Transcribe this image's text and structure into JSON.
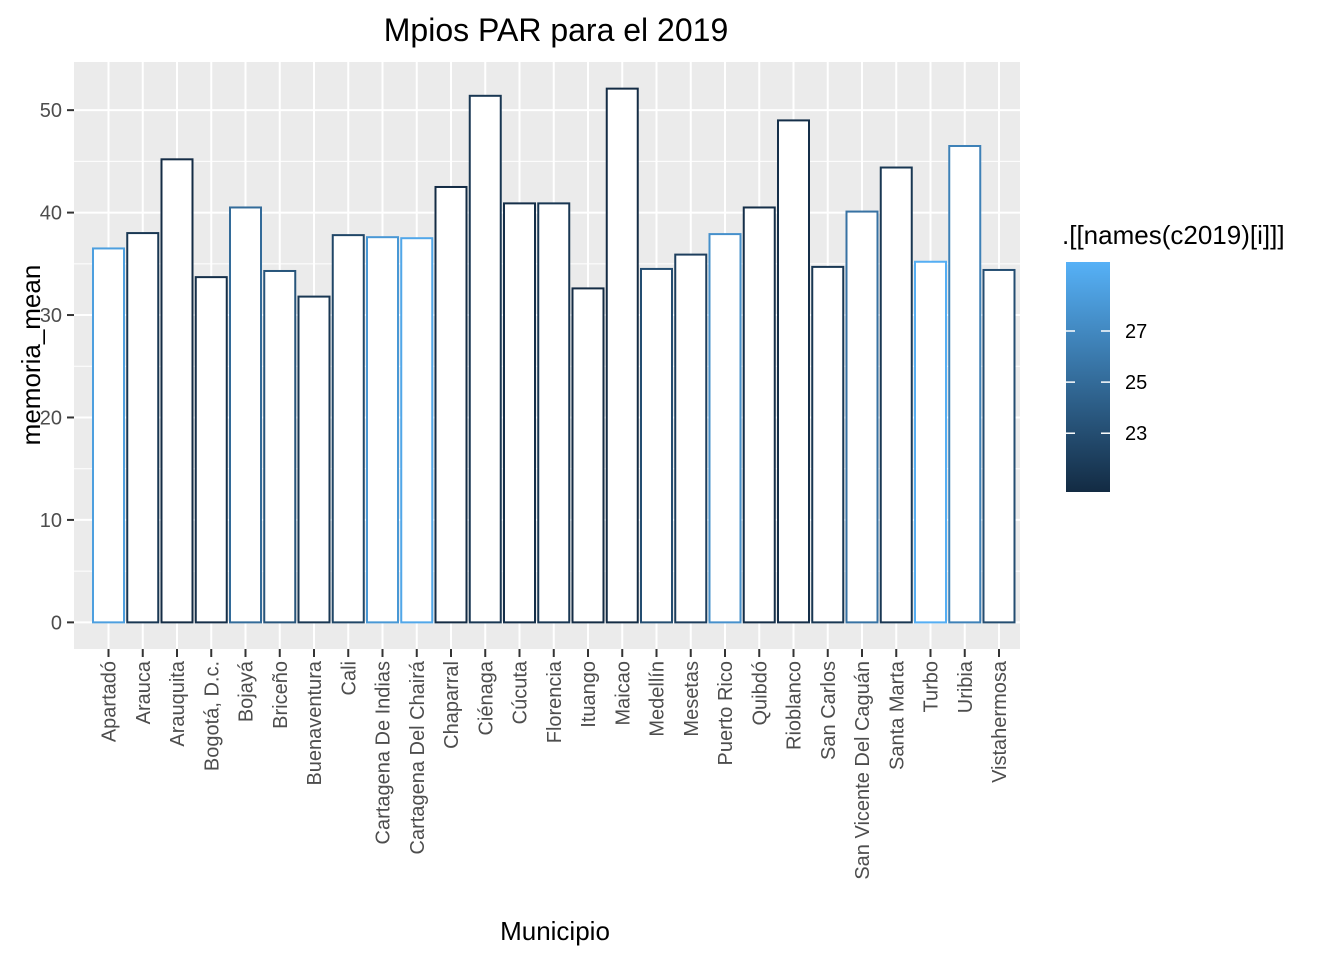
{
  "chart_data": {
    "type": "bar",
    "title": "Mpios PAR para el 2019",
    "xlabel": "Municipio",
    "ylabel": "memoria_mean",
    "ylim": [
      -2.6,
      54.7
    ],
    "yticks": [
      0,
      10,
      20,
      30,
      40,
      50
    ],
    "grid": true,
    "categories": [
      "Apartadó",
      "Arauca",
      "Arauquita",
      "Bogotá, D.c.",
      "Bojayá",
      "Briceño",
      "Buenaventura",
      "Cali",
      "Cartagena De Indias",
      "Cartagena Del Chairá",
      "Chaparral",
      "Ciénaga",
      "Cúcuta",
      "Florencia",
      "Ituango",
      "Maicao",
      "Medellín",
      "Mesetas",
      "Puerto Rico",
      "Quibdó",
      "Rioblanco",
      "San Carlos",
      "San Vicente Del Caguán",
      "Santa Marta",
      "Turbo",
      "Uribia",
      "Vistahermosa"
    ],
    "values": [
      36.5,
      38.0,
      45.2,
      33.7,
      40.5,
      34.3,
      31.8,
      37.8,
      37.6,
      37.5,
      42.5,
      51.4,
      40.9,
      40.9,
      32.6,
      52.1,
      34.5,
      35.9,
      37.9,
      40.5,
      49.0,
      34.7,
      40.1,
      44.4,
      35.2,
      46.5,
      34.4
    ],
    "color_values": [
      28.5,
      21.5,
      20.8,
      21.0,
      25.0,
      23.5,
      21.5,
      22.5,
      28.0,
      29.0,
      20.8,
      21.5,
      21.0,
      21.5,
      20.8,
      20.8,
      23.0,
      22.0,
      27.5,
      21.0,
      21.0,
      21.5,
      25.5,
      21.5,
      29.5,
      26.5,
      23.0
    ],
    "legend": {
      "title": ".[[names(c2019)[i]]]",
      "placement": "right",
      "range": [
        20.7,
        29.7
      ],
      "ticks": [
        23,
        25,
        27
      ],
      "color_low": "#132B43",
      "color_high": "#56B1F7"
    },
    "colors": {
      "panel_bg": "#EBEBEB",
      "grid_major": "#FFFFFF",
      "bar_fill": "#FFFFFF"
    }
  }
}
